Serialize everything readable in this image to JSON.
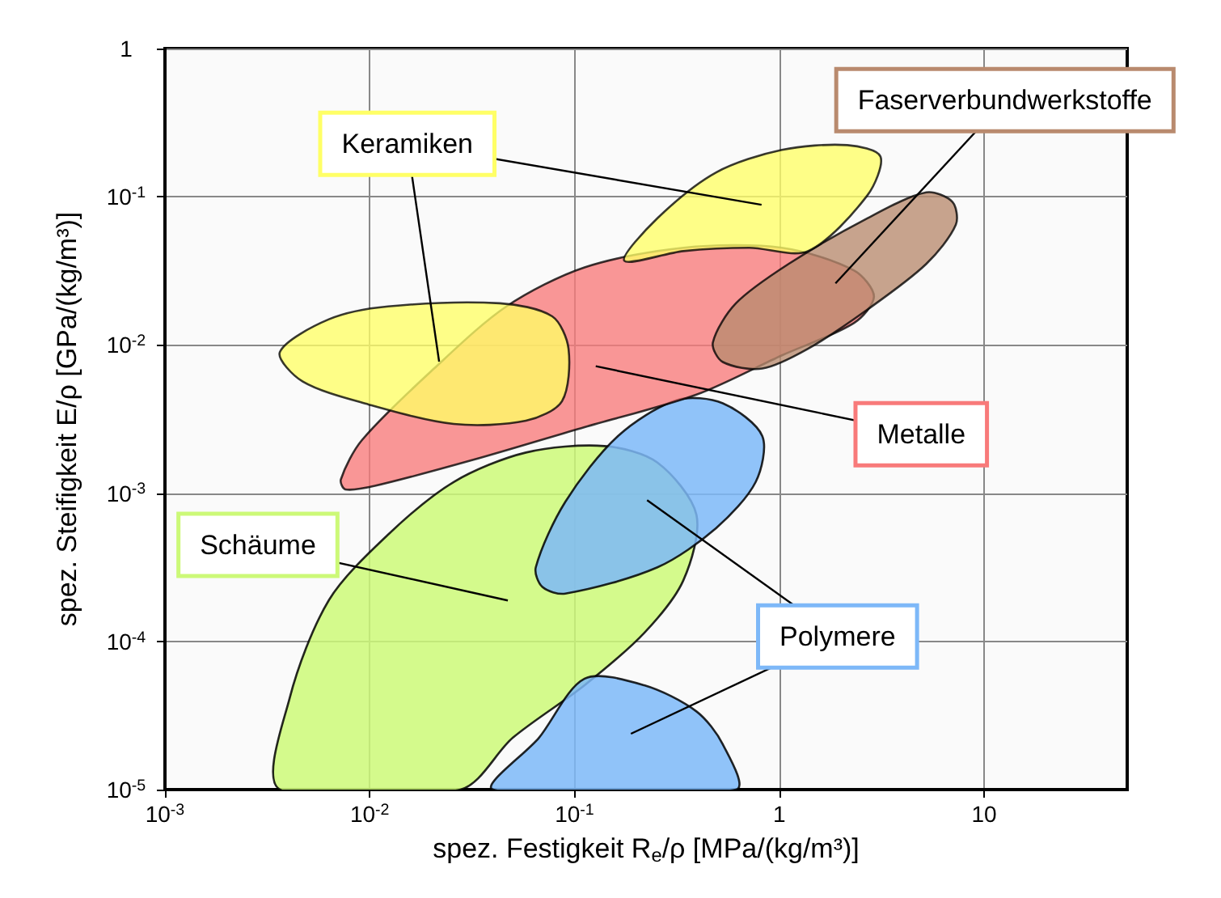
{
  "chart_data": {
    "type": "area",
    "xlabel": "spez. Festigkeit R$_{e}$/ρ [MPa/(kg/m³)]",
    "ylabel": "spez. Steifigkeit E/ρ [GPa/(kg/m³)]",
    "log": "xy",
    "grid": true,
    "legend": false,
    "xlim": [
      0.001,
      50
    ],
    "ylim": [
      1e-05,
      1
    ],
    "xticks": [
      {
        "value": 0.001,
        "label": "10$^{-3}$"
      },
      {
        "value": 0.01,
        "label": "10$^{-2}$"
      },
      {
        "value": 0.1,
        "label": "10$^{-1}$"
      },
      1,
      10
    ],
    "yticks": [
      {
        "value": 1e-05,
        "label": "10$^{-5}$"
      },
      {
        "value": 0.0001,
        "label": "10$^{-4}$"
      },
      {
        "value": 0.001,
        "label": "10$^{-3}$"
      },
      {
        "value": 0.01,
        "label": "10$^{-2}$"
      },
      {
        "value": 0.1,
        "label": "10$^{-1}$"
      },
      1
    ],
    "series": [
      {
        "name": "Schäume",
        "color": "#ccf978",
        "x": [
          0.00364,
          0.00406,
          0.00632,
          0.0123,
          0.0257,
          0.0579,
          0.14,
          0.254,
          0.394,
          0.34,
          0.219,
          0.112,
          0.05,
          0.0277
        ],
        "values": [
          1e-05,
          4.12e-05,
          0.00019,
          0.000526,
          0.00119,
          0.00188,
          0.00208,
          0.00161,
          0.000714,
          0.000258,
          0.000114,
          5.06e-05,
          2.24e-05,
          1e-05
        ]
      },
      {
        "name": "Polymere",
        "color": "#7db8f8",
        "x": [
          0.0647,
          0.0902,
          0.163,
          0.316,
          0.53,
          0.826,
          0.767,
          0.492,
          0.254,
          0.0902,
          0.0697,
          null,
          0.0401,
          0.0671,
          0.112,
          0.219,
          0.394,
          0.53,
          0.614
        ],
        "values": [
          0.000316,
          0.000875,
          0.00243,
          0.00425,
          0.00404,
          0.00243,
          0.00119,
          0.000582,
          0.000316,
          0.00021,
          0.000233,
          null,
          1e-05,
          2.24e-05,
          5.6e-05,
          5.06e-05,
          3.37e-05,
          2.02e-05,
          1e-05
        ]
      },
      {
        "name": "Metalle",
        "color": "#f87a7a",
        "x": [
          0.00723,
          0.00916,
          0.0206,
          0.0465,
          0.112,
          0.34,
          1.03,
          2.32,
          2.9,
          2.32,
          1.03,
          0.394,
          0.112,
          0.0321,
          0.0106,
          0.0076
        ],
        "values": [
          0.00124,
          0.00228,
          0.00693,
          0.0182,
          0.0334,
          0.0453,
          0.0453,
          0.0318,
          0.0212,
          0.0141,
          0.00851,
          0.00462,
          0.00279,
          0.00168,
          0.00112,
          0.00106
        ]
      },
      {
        "name": "Faserverbundwerkstoffe",
        "color": "#b98a6e",
        "x": [
          0.474,
          0.614,
          1.11,
          2.69,
          5.22,
          7.01,
          7.28,
          5.22,
          2.69,
          1.38,
          0.826,
          0.53
        ],
        "values": [
          0.0104,
          0.0191,
          0.0352,
          0.0716,
          0.107,
          0.0923,
          0.0647,
          0.0352,
          0.0173,
          0.00942,
          0.00693,
          0.00767
        ]
      },
      {
        "name": "Keramiken",
        "color": "#ffff66",
        "x": [
          0.175,
          0.254,
          0.492,
          1.03,
          2.15,
          3.12,
          2.69,
          1.38,
          0.713,
          0.34,
          null,
          0.00364,
          0.00632,
          0.0123,
          0.0432,
          0.0778,
          0.0935,
          0.0869,
          0.0579,
          0.0257,
          0.00986,
          0.00471
        ],
        "values": [
          0.037,
          0.0716,
          0.146,
          0.207,
          0.223,
          0.187,
          0.102,
          0.043,
          0.0453,
          0.043,
          null,
          0.00895,
          0.0149,
          0.0182,
          0.0191,
          0.0156,
          0.00942,
          0.00418,
          0.00308,
          0.00293,
          0.00397,
          0.00566
        ]
      }
    ]
  }
}
